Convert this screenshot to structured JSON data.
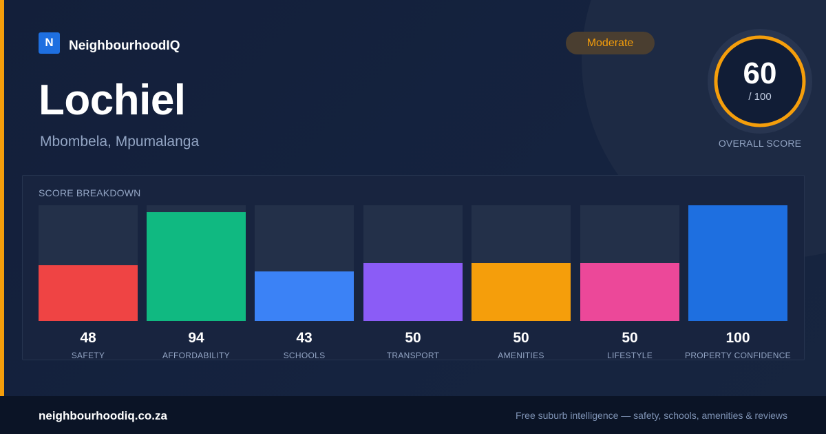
{
  "brand": {
    "logo_letter": "N",
    "name": "NeighbourhoodIQ"
  },
  "suburb": {
    "name": "Lochiel",
    "location": "Mbombela, Mpumalanga"
  },
  "rating": {
    "badge": "Moderate",
    "score": "60",
    "out_of": "/ 100",
    "label": "OVERALL SCORE",
    "score_fraction": 0.6
  },
  "breakdown": {
    "title": "SCORE BREAKDOWN",
    "items": [
      {
        "label": "SAFETY",
        "value": "48",
        "level": 48,
        "color": "#ef4444"
      },
      {
        "label": "AFFORDABILITY",
        "value": "94",
        "level": 94,
        "color": "#10b981"
      },
      {
        "label": "SCHOOLS",
        "value": "43",
        "level": 43,
        "color": "#3b82f6"
      },
      {
        "label": "TRANSPORT",
        "value": "50",
        "level": 50,
        "color": "#8b5cf6"
      },
      {
        "label": "AMENITIES",
        "value": "50",
        "level": 50,
        "color": "#f59e0b"
      },
      {
        "label": "LIFESTYLE",
        "value": "50",
        "level": 50,
        "color": "#ec4899"
      },
      {
        "label": "PROPERTY CONFIDENCE",
        "value": "100",
        "level": 100,
        "color": "#1e6fe0"
      }
    ]
  },
  "footer": {
    "url": "neighbourhoodiq.co.za",
    "tagline": "Free suburb intelligence — safety, schools, amenities & reviews"
  },
  "colors": {
    "accent": "#f59e0b",
    "brand": "#1e6fe0",
    "background": "#14213d"
  }
}
